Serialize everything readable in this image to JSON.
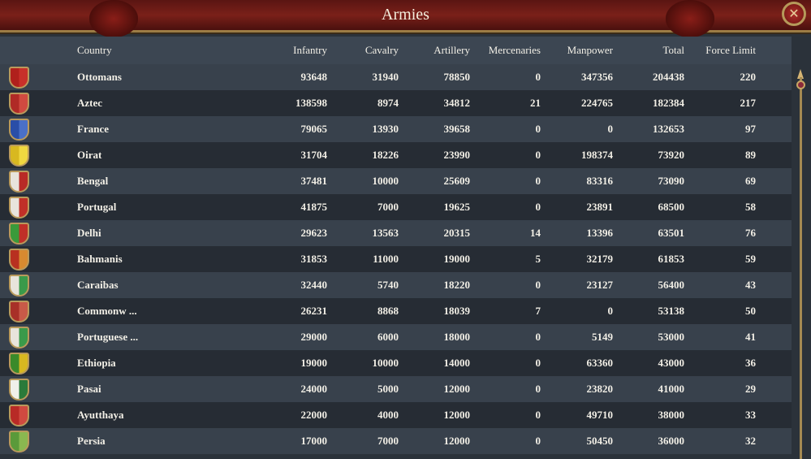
{
  "window": {
    "title": "Armies",
    "close_icon": "close-icon"
  },
  "columns": [
    "Country",
    "Infantry",
    "Cavalry",
    "Artillery",
    "Mercenaries",
    "Manpower",
    "Total",
    "Force Limit"
  ],
  "rows": [
    {
      "country": "Ottomans",
      "colors": [
        "#b0201c",
        "#c8302a"
      ],
      "values": [
        "93648",
        "31940",
        "78850",
        "0",
        "347356",
        "204438",
        "220"
      ]
    },
    {
      "country": "Aztec",
      "colors": [
        "#b02a26",
        "#d04a40"
      ],
      "values": [
        "138598",
        "8974",
        "34812",
        "21",
        "224765",
        "182384",
        "217"
      ]
    },
    {
      "country": "France",
      "colors": [
        "#2a4ea8",
        "#4a70c8"
      ],
      "values": [
        "79065",
        "13930",
        "39658",
        "0",
        "0",
        "132653",
        "97"
      ]
    },
    {
      "country": "Oirat",
      "colors": [
        "#d8b820",
        "#f0d840"
      ],
      "values": [
        "31704",
        "18226",
        "23990",
        "0",
        "198374",
        "73920",
        "89"
      ]
    },
    {
      "country": "Bengal",
      "colors": [
        "#e8e4dc",
        "#b82a26"
      ],
      "values": [
        "37481",
        "10000",
        "25609",
        "0",
        "83316",
        "73090",
        "69"
      ]
    },
    {
      "country": "Portugal",
      "colors": [
        "#e8e4dc",
        "#c03028"
      ],
      "values": [
        "41875",
        "7000",
        "19625",
        "0",
        "23891",
        "68500",
        "58"
      ]
    },
    {
      "country": "Delhi",
      "colors": [
        "#3a9a3a",
        "#c03028"
      ],
      "values": [
        "29623",
        "13563",
        "20315",
        "14",
        "13396",
        "63501",
        "76"
      ]
    },
    {
      "country": "Bahmanis",
      "colors": [
        "#b83020",
        "#d88a30"
      ],
      "values": [
        "31853",
        "11000",
        "19000",
        "5",
        "32179",
        "61853",
        "59"
      ]
    },
    {
      "country": "Caraibas",
      "colors": [
        "#e8e4dc",
        "#3a9a4a"
      ],
      "values": [
        "32440",
        "5740",
        "18220",
        "0",
        "23127",
        "56400",
        "43"
      ]
    },
    {
      "country": "Commonw ...",
      "colors": [
        "#a83028",
        "#c85a48"
      ],
      "values": [
        "26231",
        "8868",
        "18039",
        "7",
        "0",
        "53138",
        "50"
      ]
    },
    {
      "country": "Portuguese ...",
      "colors": [
        "#e8e4dc",
        "#3a9a4a"
      ],
      "values": [
        "29000",
        "6000",
        "18000",
        "0",
        "5149",
        "53000",
        "41"
      ]
    },
    {
      "country": "Ethiopia",
      "colors": [
        "#3a8a2a",
        "#d8b820"
      ],
      "values": [
        "19000",
        "10000",
        "14000",
        "0",
        "63360",
        "43000",
        "36"
      ]
    },
    {
      "country": "Pasai",
      "colors": [
        "#f0f0ea",
        "#2a7a3a"
      ],
      "values": [
        "24000",
        "5000",
        "12000",
        "0",
        "23820",
        "41000",
        "29"
      ]
    },
    {
      "country": "Ayutthaya",
      "colors": [
        "#b82a26",
        "#d04a40"
      ],
      "values": [
        "22000",
        "4000",
        "12000",
        "0",
        "49710",
        "38000",
        "33"
      ]
    },
    {
      "country": "Persia",
      "colors": [
        "#5a9a3a",
        "#8ab850"
      ],
      "values": [
        "17000",
        "7000",
        "12000",
        "0",
        "50450",
        "36000",
        "32"
      ]
    }
  ]
}
